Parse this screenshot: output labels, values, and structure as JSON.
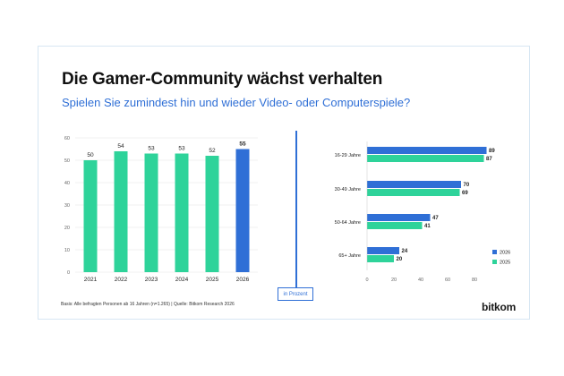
{
  "title": "Die Gamer-Community wächst verhalten",
  "subtitle": "Spielen Sie zumindest hin und wieder Video- oder Computerspiele?",
  "unit_label": "in Prozent",
  "source": "Basis: Alle befragten Personen ab 16 Jahren (n=1.265) | Quelle: Bitkom Research 2026",
  "logo": "bitkom",
  "colors": {
    "green": "#2ed39a",
    "blue": "#2f6fd6",
    "accent": "#2f6fd6",
    "grid": "#e3e3e3"
  },
  "chart_data": [
    {
      "type": "bar",
      "categories": [
        "2021",
        "2022",
        "2023",
        "2024",
        "2025",
        "2026"
      ],
      "values": [
        50,
        54,
        53,
        53,
        52,
        55
      ],
      "highlight_category": "2026",
      "ylim": [
        0,
        60
      ],
      "yticks": [
        0,
        10,
        20,
        30,
        40,
        50,
        60
      ],
      "grid": true
    },
    {
      "type": "bar",
      "orientation": "horizontal",
      "categories": [
        "16-29 Jahre",
        "30-49 Jahre",
        "50-64 Jahre",
        "65+ Jahre"
      ],
      "series": [
        {
          "name": "2026",
          "values": [
            89,
            70,
            47,
            24
          ],
          "color": "#2f6fd6"
        },
        {
          "name": "2025",
          "values": [
            87,
            69,
            41,
            20
          ],
          "color": "#2ed39a"
        }
      ],
      "xlim": [
        0,
        90
      ],
      "xticks": [
        0,
        20,
        40,
        60,
        80
      ],
      "legend": "bottom-right",
      "grid": false
    }
  ]
}
